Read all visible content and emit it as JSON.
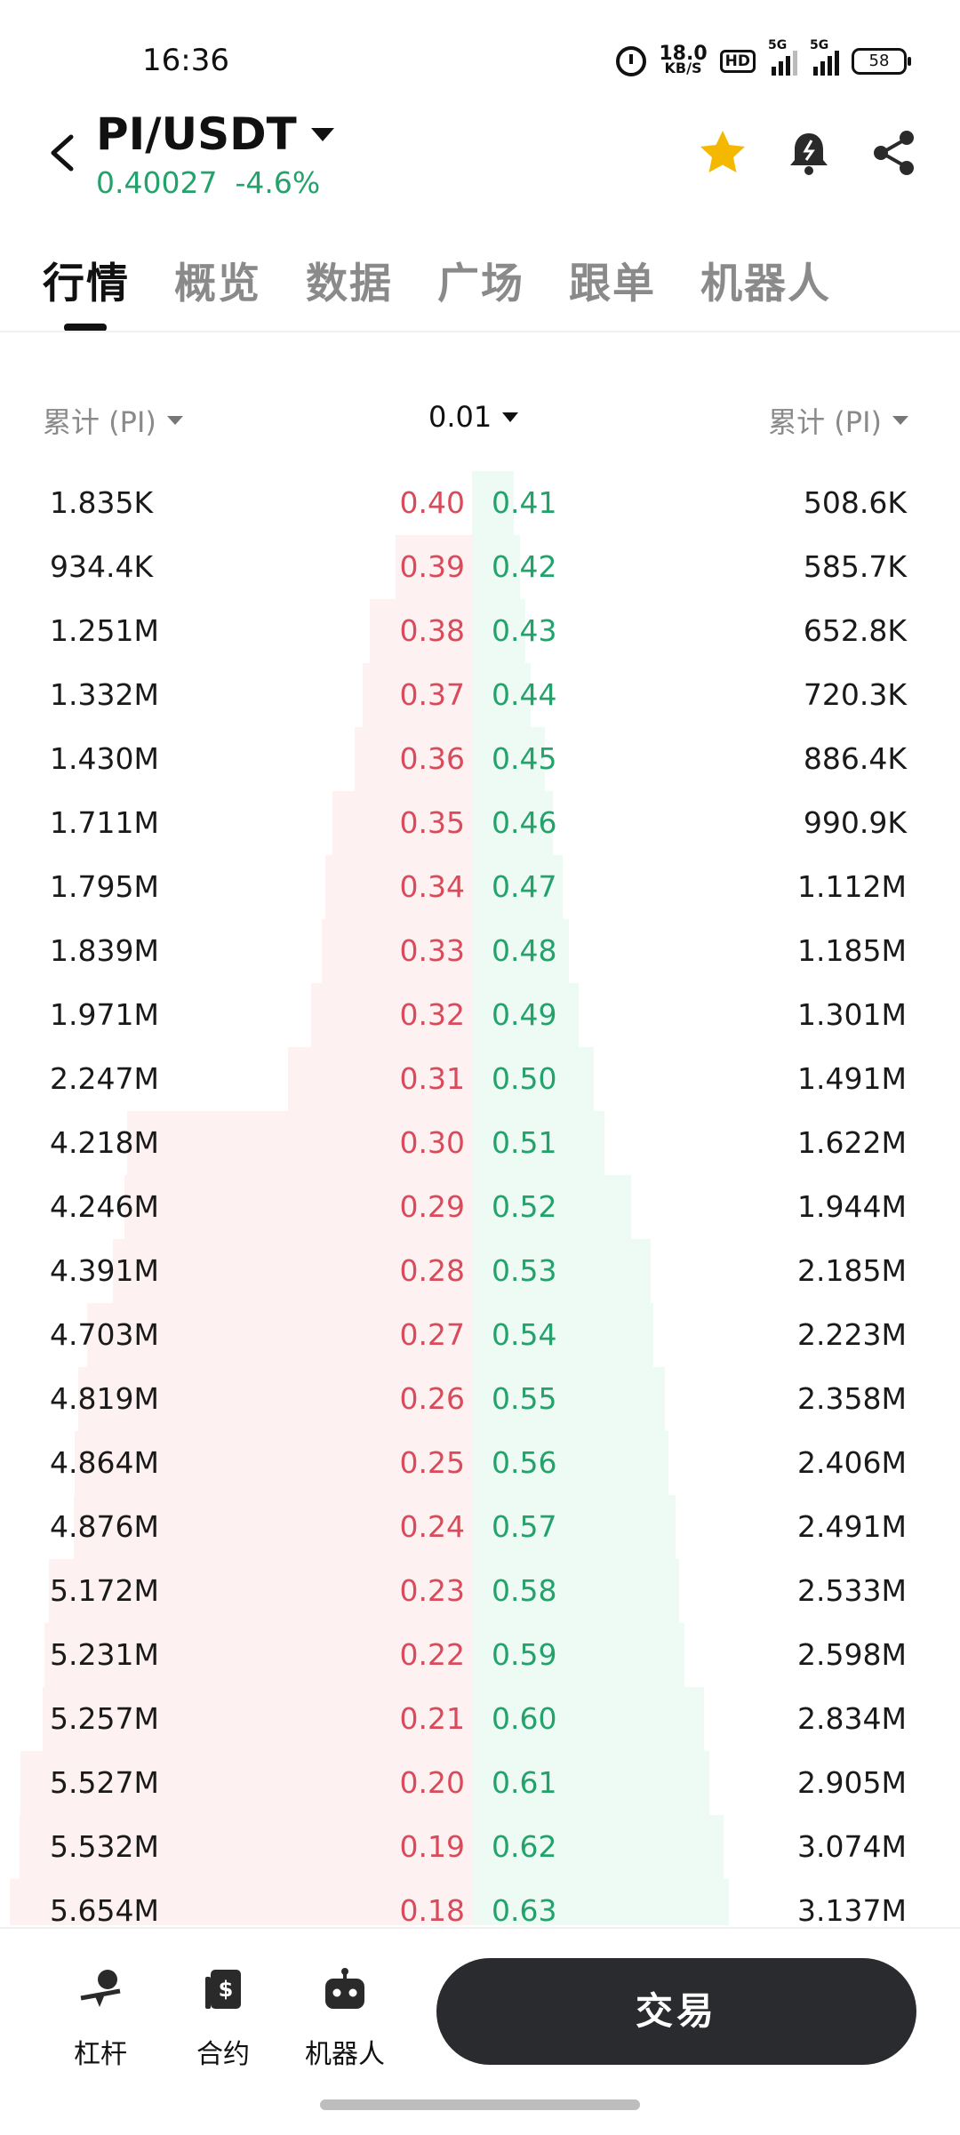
{
  "status_bar": {
    "time": "16:36",
    "net_speed_value": "18.0",
    "net_speed_unit": "KB/S",
    "hd_label": "HD",
    "sim1_label": "5G",
    "sim2_label": "5G",
    "battery": "58"
  },
  "header": {
    "pair": "PI/USDT",
    "price": "0.40027",
    "change": "-4.6%",
    "favorite_icon": "star-icon",
    "alert_icon": "bell-alert-icon",
    "share_icon": "share-icon"
  },
  "tabs": [
    {
      "label": "行情",
      "active": true
    },
    {
      "label": "概览",
      "active": false
    },
    {
      "label": "数据",
      "active": false
    },
    {
      "label": "广场",
      "active": false
    },
    {
      "label": "跟单",
      "active": false
    },
    {
      "label": "机器人",
      "active": false
    }
  ],
  "controls": {
    "left_label": "累计 (PI)",
    "precision": "0.01",
    "right_label": "累计 (PI)"
  },
  "order_book": [
    {
      "bid_qty": "1.835K",
      "bid_price": "0.40",
      "ask_price": "0.41",
      "ask_qty": "508.6K"
    },
    {
      "bid_qty": "934.4K",
      "bid_price": "0.39",
      "ask_price": "0.42",
      "ask_qty": "585.7K"
    },
    {
      "bid_qty": "1.251M",
      "bid_price": "0.38",
      "ask_price": "0.43",
      "ask_qty": "652.8K"
    },
    {
      "bid_qty": "1.332M",
      "bid_price": "0.37",
      "ask_price": "0.44",
      "ask_qty": "720.3K"
    },
    {
      "bid_qty": "1.430M",
      "bid_price": "0.36",
      "ask_price": "0.45",
      "ask_qty": "886.4K"
    },
    {
      "bid_qty": "1.711M",
      "bid_price": "0.35",
      "ask_price": "0.46",
      "ask_qty": "990.9K"
    },
    {
      "bid_qty": "1.795M",
      "bid_price": "0.34",
      "ask_price": "0.47",
      "ask_qty": "1.112M"
    },
    {
      "bid_qty": "1.839M",
      "bid_price": "0.33",
      "ask_price": "0.48",
      "ask_qty": "1.185M"
    },
    {
      "bid_qty": "1.971M",
      "bid_price": "0.32",
      "ask_price": "0.49",
      "ask_qty": "1.301M"
    },
    {
      "bid_qty": "2.247M",
      "bid_price": "0.31",
      "ask_price": "0.50",
      "ask_qty": "1.491M"
    },
    {
      "bid_qty": "4.218M",
      "bid_price": "0.30",
      "ask_price": "0.51",
      "ask_qty": "1.622M"
    },
    {
      "bid_qty": "4.246M",
      "bid_price": "0.29",
      "ask_price": "0.52",
      "ask_qty": "1.944M"
    },
    {
      "bid_qty": "4.391M",
      "bid_price": "0.28",
      "ask_price": "0.53",
      "ask_qty": "2.185M"
    },
    {
      "bid_qty": "4.703M",
      "bid_price": "0.27",
      "ask_price": "0.54",
      "ask_qty": "2.223M"
    },
    {
      "bid_qty": "4.819M",
      "bid_price": "0.26",
      "ask_price": "0.55",
      "ask_qty": "2.358M"
    },
    {
      "bid_qty": "4.864M",
      "bid_price": "0.25",
      "ask_price": "0.56",
      "ask_qty": "2.406M"
    },
    {
      "bid_qty": "4.876M",
      "bid_price": "0.24",
      "ask_price": "0.57",
      "ask_qty": "2.491M"
    },
    {
      "bid_qty": "5.172M",
      "bid_price": "0.23",
      "ask_price": "0.58",
      "ask_qty": "2.533M"
    },
    {
      "bid_qty": "5.231M",
      "bid_price": "0.22",
      "ask_price": "0.59",
      "ask_qty": "2.598M"
    },
    {
      "bid_qty": "5.257M",
      "bid_price": "0.21",
      "ask_price": "0.60",
      "ask_qty": "2.834M"
    },
    {
      "bid_qty": "5.527M",
      "bid_price": "0.20",
      "ask_price": "0.61",
      "ask_qty": "2.905M"
    },
    {
      "bid_qty": "5.532M",
      "bid_price": "0.19",
      "ask_price": "0.62",
      "ask_qty": "3.074M"
    },
    {
      "bid_qty": "5.654M",
      "bid_price": "0.18",
      "ask_price": "0.63",
      "ask_qty": "3.137M"
    }
  ],
  "bottom_nav": [
    {
      "label": "杠杆",
      "icon": "leverage-icon"
    },
    {
      "label": "合约",
      "icon": "contract-icon"
    },
    {
      "label": "机器人",
      "icon": "robot-icon"
    }
  ],
  "trade_button": "交易",
  "colors": {
    "up": "#23a26b",
    "down": "#d94b5a",
    "bid_depth": "#fdf1f1",
    "ask_depth": "#eefaf4",
    "star": "#f5b800"
  }
}
